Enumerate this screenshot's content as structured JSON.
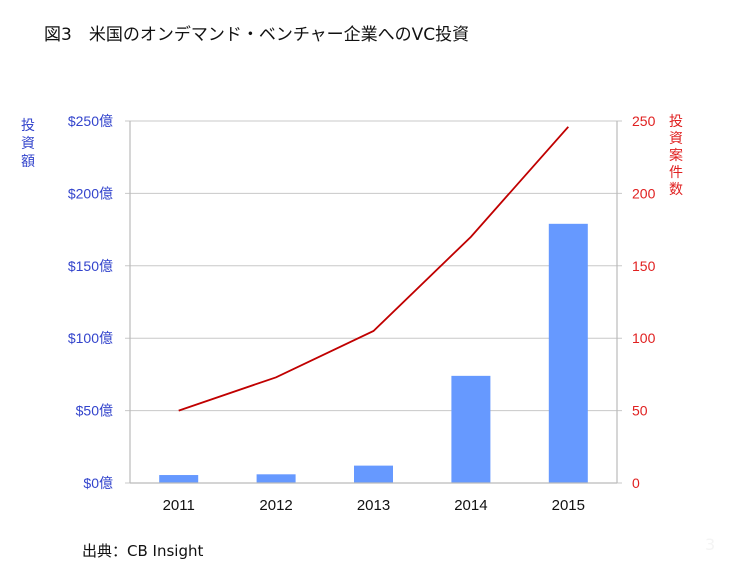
{
  "page": {
    "title": "図3　米国のオンデマンド・ベンチャー企業へのVC投資",
    "source": "出典：CB Insight",
    "page_number": "3"
  },
  "colors": {
    "bar": "#6699ff",
    "line": "#c00000",
    "left_axis_text": "#3344cc",
    "right_axis_text": "#e02020",
    "grid": "#c8c8c8"
  },
  "chart_data": {
    "type": "bar",
    "title": "図3　米国のオンデマンド・ベンチャー企業へのVC投資",
    "categories": [
      "2011",
      "2012",
      "2013",
      "2014",
      "2015"
    ],
    "series": [
      {
        "name": "投資額",
        "type": "bar",
        "axis": "left",
        "unit": "億ドル",
        "values": [
          5.5,
          6,
          12,
          74,
          179
        ]
      },
      {
        "name": "投資案件数",
        "type": "line",
        "axis": "right",
        "values": [
          50,
          73,
          105,
          170,
          246
        ]
      }
    ],
    "xlabel": "",
    "ylabel": "投資額",
    "ylabel_right": "投資案件数",
    "ylim": [
      0,
      250
    ],
    "ylim_right": [
      0,
      250
    ],
    "yticks_left": [
      "$0億",
      "$50億",
      "$100億",
      "$150億",
      "$200億",
      "$250億"
    ],
    "yticks_right": [
      "0",
      "50",
      "100",
      "150",
      "200",
      "250"
    ],
    "grid": true,
    "legend": "none",
    "source": "出典：CB Insight"
  }
}
